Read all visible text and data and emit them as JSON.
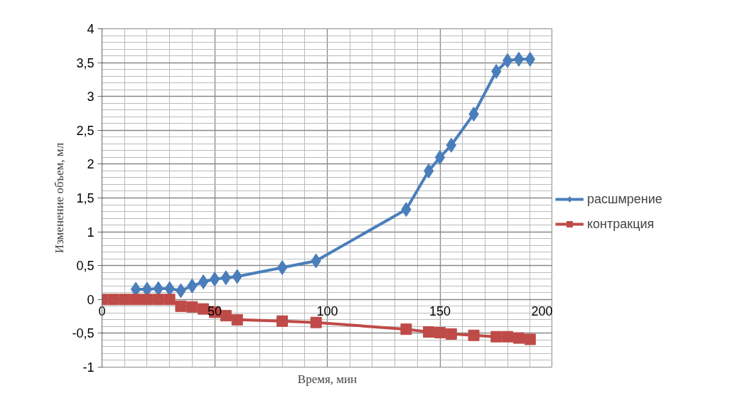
{
  "chart_data": {
    "type": "line",
    "xlabel": "Время, мин",
    "ylabel": "Изменение объем, мл",
    "xlim": [
      0,
      200
    ],
    "xticks": [
      0,
      50,
      100,
      150,
      200
    ],
    "ylim": [
      -1,
      4
    ],
    "yticks": [
      {
        "value": -1,
        "label": "-1"
      },
      {
        "value": -0.5,
        "label": "-0,5"
      },
      {
        "value": 0,
        "label": "0"
      },
      {
        "value": 0.5,
        "label": "0,5"
      },
      {
        "value": 1,
        "label": "1"
      },
      {
        "value": 1.5,
        "label": "1,5"
      },
      {
        "value": 2,
        "label": "2"
      },
      {
        "value": 2.5,
        "label": "2,5"
      },
      {
        "value": 3,
        "label": "3"
      },
      {
        "value": 3.5,
        "label": "3,5"
      },
      {
        "value": 4,
        "label": "4"
      }
    ],
    "grid": true,
    "legend": "right",
    "series": [
      {
        "name": "расшмрение",
        "color": "#4a7ebb",
        "marker": "diamond",
        "x": [
          15,
          20,
          25,
          30,
          35,
          40,
          45,
          50,
          55,
          60,
          80,
          95,
          135,
          145,
          150,
          155,
          165,
          175,
          180,
          185,
          190
        ],
        "values": [
          0.15,
          0.15,
          0.16,
          0.16,
          0.13,
          0.2,
          0.26,
          0.3,
          0.32,
          0.34,
          0.47,
          0.57,
          1.33,
          1.9,
          2.1,
          2.28,
          2.74,
          3.37,
          3.53,
          3.55,
          3.55
        ]
      },
      {
        "name": "контракция",
        "color": "#be4b48",
        "marker": "square",
        "x": [
          0,
          5,
          10,
          15,
          20,
          25,
          30,
          35,
          40,
          45,
          50,
          55,
          60,
          80,
          95,
          135,
          145,
          150,
          155,
          165,
          175,
          180,
          185,
          190
        ],
        "values": [
          0,
          0,
          0,
          0,
          0,
          0,
          0,
          -0.1,
          -0.11,
          -0.14,
          -0.19,
          -0.24,
          -0.3,
          -0.32,
          -0.34,
          -0.44,
          -0.48,
          -0.49,
          -0.51,
          -0.53,
          -0.55,
          -0.55,
          -0.57,
          -0.59
        ]
      }
    ]
  }
}
